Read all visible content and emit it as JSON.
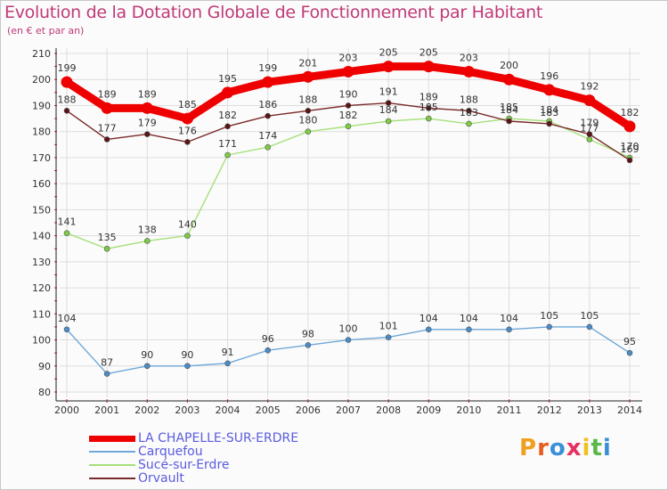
{
  "title": "Evolution de la Dotation Globale de Fonctionnement par Habitant",
  "subtitle": "(en € et par an)",
  "logo_text": "Proxiti",
  "colors": {
    "title": "#c03a78",
    "grid": "#dddddd",
    "axis": "#222222",
    "legend_text": "#5b5be0"
  },
  "chart_data": {
    "type": "line",
    "title": "Evolution de la Dotation Globale de Fonctionnement par Habitant",
    "subtitle": "(en € et par an)",
    "x": [
      2000,
      2001,
      2002,
      2003,
      2004,
      2005,
      2006,
      2007,
      2008,
      2009,
      2010,
      2011,
      2012,
      2013,
      2014
    ],
    "ylim": [
      80,
      210
    ],
    "yticks": [
      80,
      90,
      100,
      110,
      120,
      130,
      140,
      150,
      160,
      170,
      180,
      190,
      200,
      210
    ],
    "grid": true,
    "series": [
      {
        "name": "LA CHAPELLE-SUR-ERDRE",
        "color": "#ee0000",
        "marker_color": "#ee0000",
        "emphasis": true,
        "values": [
          199,
          189,
          189,
          185,
          195,
          199,
          201,
          203,
          205,
          205,
          203,
          200,
          196,
          192,
          182
        ]
      },
      {
        "name": "Carquefou",
        "color": "#6fa8d8",
        "marker_color": "#4a8cc8",
        "emphasis": false,
        "values": [
          104,
          87,
          90,
          90,
          91,
          96,
          98,
          100,
          101,
          104,
          104,
          104,
          105,
          105,
          95
        ]
      },
      {
        "name": "Sucé-sur-Erdre",
        "color": "#a6e07a",
        "marker_color": "#7ccc44",
        "emphasis": false,
        "values": [
          141,
          135,
          138,
          140,
          171,
          174,
          180,
          182,
          184,
          185,
          183,
          185,
          184,
          177,
          170
        ]
      },
      {
        "name": "Orvault",
        "color": "#7a2a2a",
        "marker_color": "#5a1414",
        "emphasis": false,
        "values": [
          188,
          177,
          179,
          176,
          182,
          186,
          188,
          190,
          191,
          189,
          188,
          184,
          183,
          179,
          169
        ]
      }
    ]
  }
}
